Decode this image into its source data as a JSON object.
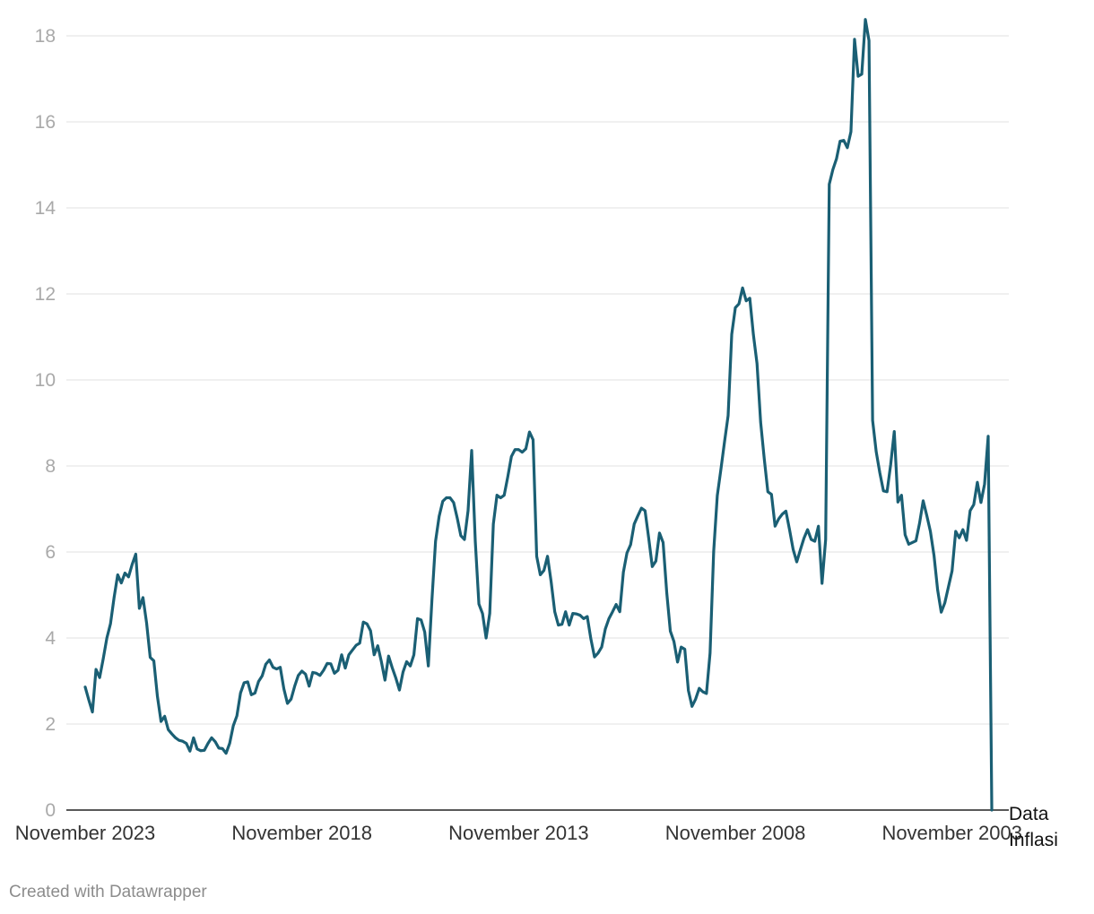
{
  "footer": {
    "credit": "Created with Datawrapper"
  },
  "colors": {
    "line": "#1a5f74",
    "grid": "#e1e1e1",
    "axis_text": "#a9a9a9"
  },
  "chart_data": {
    "type": "line",
    "title": "",
    "xlabel": "",
    "ylabel": "",
    "x_order": "reverse-chronological",
    "x_start": "November 2023",
    "x_tick_labels": [
      "November 2023",
      "November 2018",
      "November 2013",
      "November 2008",
      "November 2003"
    ],
    "x_tick_index": [
      0,
      60,
      120,
      180,
      240
    ],
    "y_ticks": [
      0,
      2,
      4,
      6,
      8,
      10,
      12,
      14,
      16,
      18
    ],
    "ylim": [
      0,
      18.4
    ],
    "grid": true,
    "series": [
      {
        "name": "Data Inflasi",
        "values": [
          2.86,
          2.56,
          2.28,
          3.27,
          3.08,
          3.52,
          4.0,
          4.33,
          4.94,
          5.47,
          5.28,
          5.51,
          5.42,
          5.71,
          5.95,
          4.69,
          4.94,
          4.35,
          3.55,
          3.47,
          2.64,
          2.06,
          2.18,
          1.87,
          1.77,
          1.68,
          1.62,
          1.6,
          1.55,
          1.37,
          1.68,
          1.42,
          1.38,
          1.39,
          1.55,
          1.68,
          1.59,
          1.44,
          1.43,
          1.32,
          1.55,
          1.96,
          2.19,
          2.72,
          2.96,
          2.98,
          2.68,
          2.72,
          2.99,
          3.12,
          3.39,
          3.49,
          3.32,
          3.28,
          3.32,
          2.82,
          2.48,
          2.58,
          2.88,
          3.13,
          3.23,
          3.16,
          2.88,
          3.2,
          3.18,
          3.13,
          3.25,
          3.41,
          3.4,
          3.18,
          3.25,
          3.61,
          3.3,
          3.61,
          3.72,
          3.83,
          3.88,
          4.37,
          4.33,
          4.17,
          3.61,
          3.82,
          3.45,
          3.02,
          3.58,
          3.31,
          3.07,
          2.79,
          3.21,
          3.45,
          3.35,
          3.61,
          4.45,
          4.42,
          4.14,
          3.35,
          4.89,
          6.25,
          6.83,
          7.18,
          7.26,
          7.26,
          7.15,
          6.79,
          6.38,
          6.29,
          6.96,
          8.36,
          6.25,
          4.79,
          4.57,
          4.0,
          4.57,
          6.65,
          7.32,
          7.26,
          7.32,
          7.75,
          8.22,
          8.38,
          8.38,
          8.32,
          8.4,
          8.79,
          8.61,
          5.9,
          5.47,
          5.57,
          5.9,
          5.31,
          4.61,
          4.3,
          4.32,
          4.61,
          4.3,
          4.57,
          4.56,
          4.53,
          4.45,
          4.5,
          3.98,
          3.56,
          3.65,
          3.79,
          4.21,
          4.45,
          4.61,
          4.78,
          4.61,
          5.53,
          5.98,
          6.17,
          6.65,
          6.84,
          7.02,
          6.96,
          6.33,
          5.66,
          5.79,
          6.44,
          6.22,
          5.06,
          4.16,
          3.92,
          3.44,
          3.79,
          3.74,
          2.78,
          2.41,
          2.58,
          2.83,
          2.75,
          2.71,
          3.65,
          6.01,
          7.31,
          7.92,
          8.56,
          9.17,
          11.06,
          11.68,
          11.77,
          12.14,
          11.84,
          11.9,
          11.05,
          10.38,
          9.02,
          8.17,
          7.4,
          7.34,
          6.6,
          6.77,
          6.88,
          6.95,
          6.52,
          6.06,
          5.77,
          6.05,
          6.32,
          6.52,
          6.29,
          6.25,
          6.6,
          5.27,
          6.29,
          14.55,
          14.89,
          15.14,
          15.55,
          15.57,
          15.4,
          15.77,
          17.92,
          17.06,
          17.11,
          18.38,
          17.89,
          9.06,
          8.33,
          7.84,
          7.42,
          7.4,
          8.03,
          8.8,
          7.16,
          7.32,
          6.4,
          6.18,
          6.22,
          6.26,
          6.67,
          7.19,
          6.85,
          6.48,
          5.92,
          5.12,
          4.6,
          4.82,
          5.19,
          5.56,
          6.48,
          6.33,
          6.52,
          6.27,
          6.96,
          7.1,
          7.62,
          7.15,
          7.58,
          8.69,
          0
        ]
      }
    ]
  }
}
